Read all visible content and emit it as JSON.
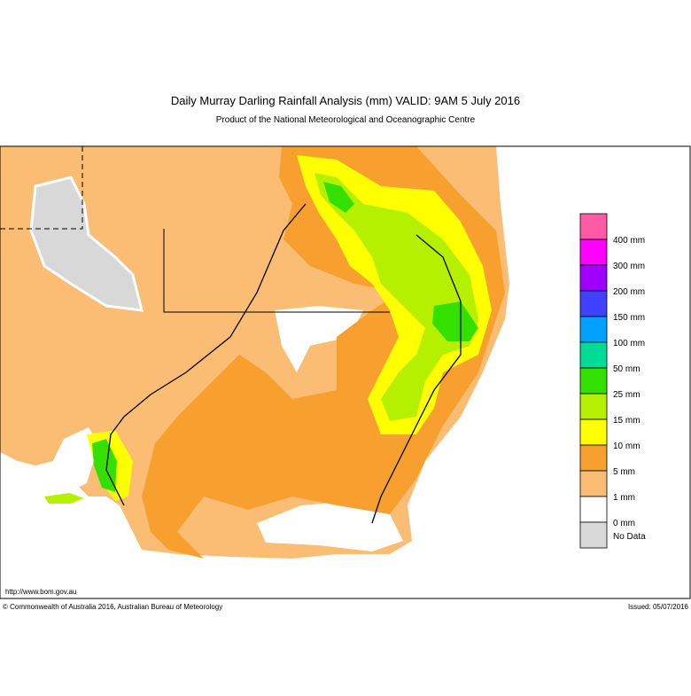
{
  "header": {
    "title": "Daily Murray Darling Rainfall Analysis (mm)  VALID: 9AM  5 July 2016",
    "subtitle": "Product of the National Meteorological and Oceanographic Centre"
  },
  "legend": {
    "items": [
      {
        "label": "400 mm",
        "color": "#ff5aa5"
      },
      {
        "label": "300 mm",
        "color": "#ff00ff"
      },
      {
        "label": "200 mm",
        "color": "#a000ff"
      },
      {
        "label": "150 mm",
        "color": "#4040ff"
      },
      {
        "label": "100 mm",
        "color": "#00a0ff"
      },
      {
        "label": "50 mm",
        "color": "#00dc96"
      },
      {
        "label": "25 mm",
        "color": "#33e000"
      },
      {
        "label": "15 mm",
        "color": "#b4f000"
      },
      {
        "label": "10 mm",
        "color": "#ffff00"
      },
      {
        "label": "5 mm",
        "color": "#f7a030"
      },
      {
        "label": "1 mm",
        "color": "#fbbd74"
      },
      {
        "label": "0 mm",
        "color": "#ffffff"
      },
      {
        "label": "No Data",
        "color": "#d8d8d8"
      }
    ]
  },
  "footer": {
    "url": "http://www.bom.gov.au",
    "copyright": "© Commonwealth of Australia 2016, Australian Bureau of Meteorology",
    "issued": "Issued: 05/07/2016"
  }
}
